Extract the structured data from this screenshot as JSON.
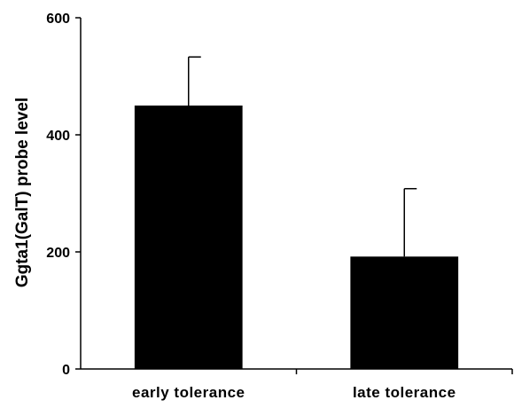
{
  "chart_data": {
    "type": "bar",
    "title": "",
    "xlabel": "",
    "ylabel": "Ggta1(GalT) probe level",
    "categories": [
      "early tolerance",
      "late tolerance"
    ],
    "values": [
      450,
      192
    ],
    "error_upper": [
      533,
      308
    ],
    "ylim": [
      0,
      600
    ],
    "yticks": [
      0,
      200,
      400,
      600
    ],
    "ytick_labels": [
      "0",
      "200",
      "400",
      "600"
    ],
    "grid": false,
    "legend": "none",
    "bar_color": "#000000"
  }
}
